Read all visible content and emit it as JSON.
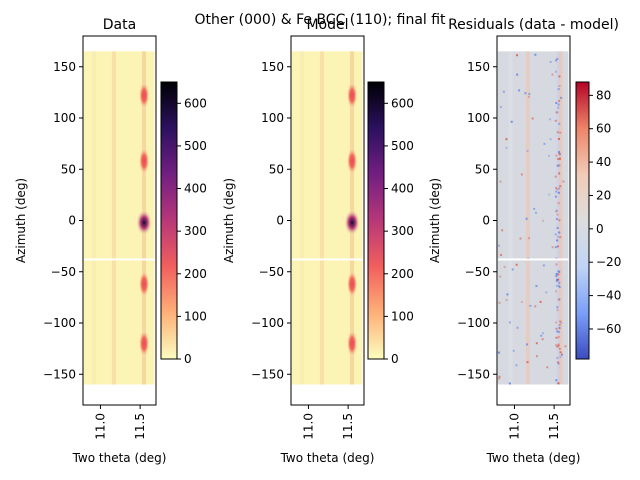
{
  "suptitle": "Other (000) & Fe BCC (110); final fit",
  "chart_data": [
    {
      "type": "heatmap",
      "title": "Data",
      "xlabel": "Two theta (deg)",
      "ylabel": "Azimuth (deg)",
      "xlim": [
        10.78,
        11.7
      ],
      "ylim": [
        -180,
        180
      ],
      "xticks": [
        11.0,
        11.5
      ],
      "yticks": [
        -150,
        -100,
        -50,
        0,
        50,
        100,
        150
      ],
      "data_extent": {
        "x": [
          10.79,
          11.68
        ],
        "y": [
          -160,
          165
        ]
      },
      "gap_azimuth": -38,
      "colormap": "magma_r",
      "colorbar": {
        "range": [
          0,
          650
        ],
        "ticks": [
          0,
          100,
          200,
          300,
          400,
          500,
          600
        ]
      },
      "peaks": [
        {
          "x": 11.55,
          "azimuth": -2,
          "value": 650
        },
        {
          "x": 11.55,
          "azimuth": 122,
          "value": 260
        },
        {
          "x": 11.55,
          "azimuth": 58,
          "value": 220
        },
        {
          "x": 11.55,
          "azimuth": -62,
          "value": 200
        },
        {
          "x": 11.55,
          "azimuth": -120,
          "value": 230
        }
      ]
    },
    {
      "type": "heatmap",
      "title": "Model",
      "xlabel": "Two theta (deg)",
      "ylabel": "Azimuth (deg)",
      "xlim": [
        10.78,
        11.7
      ],
      "ylim": [
        -180,
        180
      ],
      "xticks": [
        11.0,
        11.5
      ],
      "yticks": [
        -150,
        -100,
        -50,
        0,
        50,
        100,
        150
      ],
      "data_extent": {
        "x": [
          10.79,
          11.68
        ],
        "y": [
          -160,
          165
        ]
      },
      "gap_azimuth": -38,
      "colormap": "magma_r",
      "colorbar": {
        "range": [
          0,
          650
        ],
        "ticks": [
          0,
          100,
          200,
          300,
          400,
          500,
          600
        ]
      },
      "peaks": [
        {
          "x": 11.55,
          "azimuth": -2,
          "value": 650
        },
        {
          "x": 11.55,
          "azimuth": 122,
          "value": 260
        },
        {
          "x": 11.55,
          "azimuth": 58,
          "value": 220
        },
        {
          "x": 11.55,
          "azimuth": -62,
          "value": 200
        },
        {
          "x": 11.55,
          "azimuth": -120,
          "value": 230
        }
      ]
    },
    {
      "type": "heatmap",
      "title": "Residuals (data - model)",
      "xlabel": "Two theta (deg)",
      "ylabel": "Azimuth (deg)",
      "xlim": [
        10.78,
        11.7
      ],
      "ylim": [
        -180,
        180
      ],
      "xticks": [
        11.0,
        11.5
      ],
      "yticks": [
        -150,
        -100,
        -50,
        0,
        50,
        100,
        150
      ],
      "data_extent": {
        "x": [
          10.79,
          11.68
        ],
        "y": [
          -160,
          165
        ]
      },
      "gap_azimuth": -38,
      "colormap": "coolwarm",
      "colorbar": {
        "range": [
          -78,
          88
        ],
        "ticks": [
          -60,
          -40,
          -20,
          0,
          20,
          40,
          60,
          80
        ]
      }
    }
  ]
}
